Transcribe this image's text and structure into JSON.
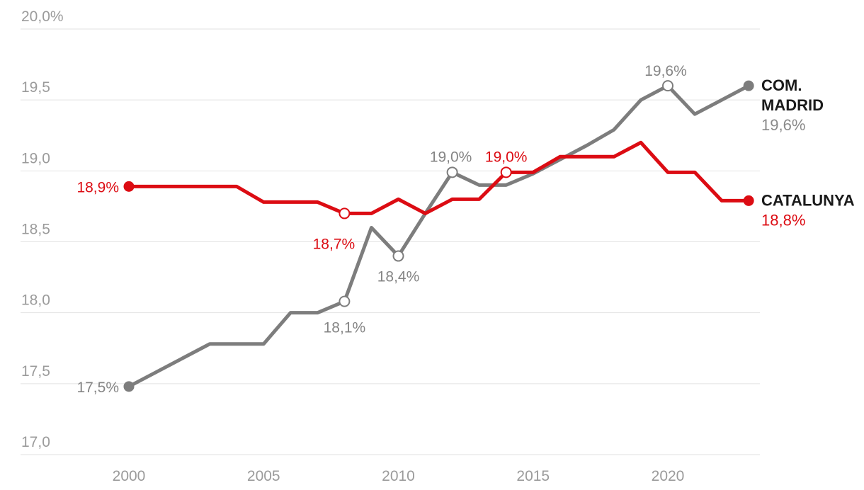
{
  "chart_data": {
    "type": "line",
    "title": "",
    "grid": "horizontal-only",
    "legend_position": "right-of-line-end",
    "axis_color": "#9b9b9b",
    "grid_color": "#e2e2e2",
    "name_color": "#1a1a1a",
    "x": [
      2000,
      2001,
      2002,
      2003,
      2004,
      2005,
      2006,
      2007,
      2008,
      2009,
      2010,
      2011,
      2012,
      2013,
      2014,
      2015,
      2016,
      2017,
      2018,
      2019,
      2020,
      2021,
      2022,
      2023
    ],
    "x_ticks": [
      2000,
      2005,
      2010,
      2015,
      2020
    ],
    "x_tick_labels": [
      "2000",
      "2005",
      "2010",
      "2015",
      "2020"
    ],
    "y_ticks": [
      20.0,
      19.5,
      19.0,
      18.5,
      18.0,
      17.5,
      17.0
    ],
    "y_tick_labels": [
      "20,0%",
      "19,5",
      "19,0",
      "18,5",
      "18,0",
      "17,5",
      "17,0"
    ],
    "ylim": [
      17.0,
      20.0
    ],
    "xlabel": "",
    "ylabel": "",
    "series": [
      {
        "id": "madrid",
        "name": "COM. MADRID",
        "name_lines": [
          "COM.",
          "MADRID"
        ],
        "end_value_label": "19,6%",
        "color": "#7d7d7d",
        "label_color": "#858585",
        "value_color": "#8a8a8a",
        "values": [
          17.48,
          17.58,
          17.68,
          17.78,
          17.78,
          17.78,
          18.0,
          18.0,
          18.08,
          18.6,
          18.4,
          18.7,
          18.99,
          18.9,
          18.9,
          18.98,
          19.08,
          19.18,
          19.29,
          19.5,
          19.6,
          19.4,
          19.5,
          19.6
        ],
        "markers": [
          {
            "year": 2000,
            "type": "dot"
          },
          {
            "year": 2008,
            "type": "ring"
          },
          {
            "year": 2010,
            "type": "ring"
          },
          {
            "year": 2012,
            "type": "ring"
          },
          {
            "year": 2020,
            "type": "ring"
          },
          {
            "year": 2023,
            "type": "dot"
          }
        ],
        "point_labels": [
          {
            "year": 2000,
            "text": "17,5%",
            "anchor": "end",
            "dx": -14,
            "dy": 8
          },
          {
            "year": 2008,
            "text": "18,1%",
            "anchor": "middle",
            "dx": 0,
            "dy": 44
          },
          {
            "year": 2010,
            "text": "18,4%",
            "anchor": "middle",
            "dx": 0,
            "dy": 36
          },
          {
            "year": 2012,
            "text": "19,0%",
            "anchor": "middle",
            "dx": -2,
            "dy": -15
          },
          {
            "year": 2020,
            "text": "19,6%",
            "anchor": "middle",
            "dx": -3,
            "dy": -14
          }
        ]
      },
      {
        "id": "catalunya",
        "name": "CATALUNYA",
        "name_lines": [
          "CATALUNYA"
        ],
        "end_value_label": "18,8%",
        "color": "#dc0c13",
        "label_color": "#dc0c13",
        "value_color": "#dc0c13",
        "values": [
          18.89,
          18.89,
          18.89,
          18.89,
          18.89,
          18.78,
          18.78,
          18.78,
          18.7,
          18.7,
          18.8,
          18.7,
          18.8,
          18.8,
          18.99,
          18.99,
          19.1,
          19.1,
          19.1,
          19.2,
          18.99,
          18.99,
          18.79,
          18.79
        ],
        "markers": [
          {
            "year": 2000,
            "type": "dot"
          },
          {
            "year": 2008,
            "type": "ring"
          },
          {
            "year": 2014,
            "type": "ring"
          },
          {
            "year": 2023,
            "type": "dot"
          }
        ],
        "point_labels": [
          {
            "year": 2000,
            "text": "18,9%",
            "anchor": "end",
            "dx": -14,
            "dy": 8
          },
          {
            "year": 2008,
            "text": "18,7%",
            "anchor": "middle",
            "dx": -15,
            "dy": 50
          },
          {
            "year": 2014,
            "text": "19,0%",
            "anchor": "middle",
            "dx": 0,
            "dy": -15
          }
        ]
      }
    ]
  }
}
